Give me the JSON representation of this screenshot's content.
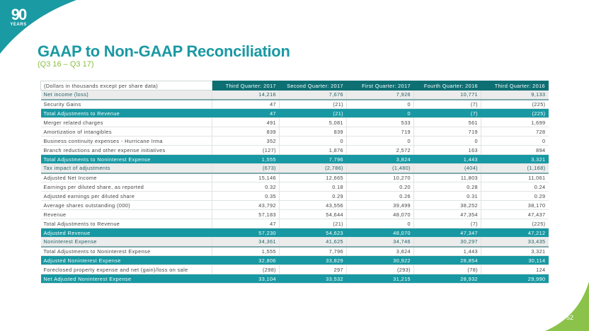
{
  "logo": {
    "number": "90",
    "text": "YEARS"
  },
  "title": "GAAP to Non-GAAP Reconciliation",
  "subtitle": "(Q3 16 – Q3 17)",
  "page_number": "52",
  "colors": {
    "teal": "#1798a2",
    "dark_teal": "#0e6f73",
    "green": "#8bc34a"
  },
  "table": {
    "header": [
      "(Dollars in thousands except per share data)",
      "Third Quarter: 2017",
      "Second Quarter: 2017",
      "First Quarter: 2017",
      "Fourth Quarter: 2016",
      "Third Quarter: 2016"
    ],
    "rows": [
      {
        "style": "gray",
        "cells": [
          "Net income (loss)",
          "14,216",
          "7,676",
          "7,926",
          "10,771",
          "9,133"
        ]
      },
      {
        "style": "",
        "cells": [
          "Security Gains",
          "47",
          "(21)",
          "0",
          "(7)",
          "(225)"
        ]
      },
      {
        "style": "teal",
        "cells": [
          "Total Adjustments to Revenue",
          "47",
          "(21)",
          "0",
          "(7)",
          "(225)"
        ]
      },
      {
        "style": "",
        "cells": [
          "Merger related charges",
          "491",
          "5,081",
          "533",
          "561",
          "1,699"
        ]
      },
      {
        "style": "",
        "cells": [
          "Amortization of intangibles",
          "839",
          "839",
          "719",
          "719",
          "728"
        ]
      },
      {
        "style": "",
        "cells": [
          "Business continuity expenses - Hurricane Irma",
          "352",
          "0",
          "0",
          "0",
          "0"
        ]
      },
      {
        "style": "",
        "cells": [
          "Branch reductions and other expense initiatives",
          "(127)",
          "1,876",
          "2,572",
          "163",
          "894"
        ]
      },
      {
        "style": "teal",
        "cells": [
          "Total Adjustments to Noninterest Expense",
          "1,555",
          "7,796",
          "3,824",
          "1,443",
          "3,321"
        ]
      },
      {
        "style": "gray",
        "cells": [
          "Tax impact of adjustments",
          "(673)",
          "(2,786)",
          "(1,480)",
          "(404)",
          "(1,168)"
        ]
      },
      {
        "style": "",
        "cells": [
          "Adjusted Net Income",
          "15,146",
          "12,665",
          "10,270",
          "11,803",
          "11,061"
        ]
      },
      {
        "style": "",
        "cells": [
          "Earnings per diluted share, as reported",
          "0.32",
          "0.18",
          "0.20",
          "0.28",
          "0.24"
        ]
      },
      {
        "style": "",
        "cells": [
          "Adjusted earnings per diluted share",
          "0.35",
          "0.29",
          "0.26",
          "0.31",
          "0.29"
        ]
      },
      {
        "style": "",
        "cells": [
          "Average shares outstanding (000)",
          "43,792",
          "43,556",
          "39,499",
          "38,252",
          "38,170"
        ]
      },
      {
        "style": "",
        "cells": [
          "Revenue",
          "57,183",
          "54,644",
          "48,070",
          "47,354",
          "47,437"
        ]
      },
      {
        "style": "",
        "cells": [
          "Total Adjustments to Revenue",
          "47",
          "(21)",
          "0",
          "(7)",
          "(225)"
        ]
      },
      {
        "style": "teal",
        "cells": [
          "Adjusted Revenue",
          "57,230",
          "54,623",
          "48,070",
          "47,347",
          "47,212"
        ]
      },
      {
        "style": "gray",
        "cells": [
          "Noninterest Expense",
          "34,361",
          "41,625",
          "34,746",
          "30,297",
          "33,435"
        ]
      },
      {
        "style": "",
        "cells": [
          "Total Adjustments to Noninterest Expense",
          "1,555",
          "7,796",
          "3,824",
          "1,443",
          "3,321"
        ]
      },
      {
        "style": "teal",
        "cells": [
          "Adjusted Noninterest Expense",
          "32,806",
          "33,829",
          "30,922",
          "28,854",
          "30,114"
        ]
      },
      {
        "style": "",
        "cells": [
          "Foreclosed property expense and net (gain)/loss on sale",
          "(298)",
          "297",
          "(293)",
          "(78)",
          "124"
        ]
      },
      {
        "style": "teal",
        "cells": [
          "Net Adjusted Noninterest Expense",
          "33,104",
          "33,532",
          "31,215",
          "28,932",
          "29,990"
        ]
      }
    ]
  }
}
